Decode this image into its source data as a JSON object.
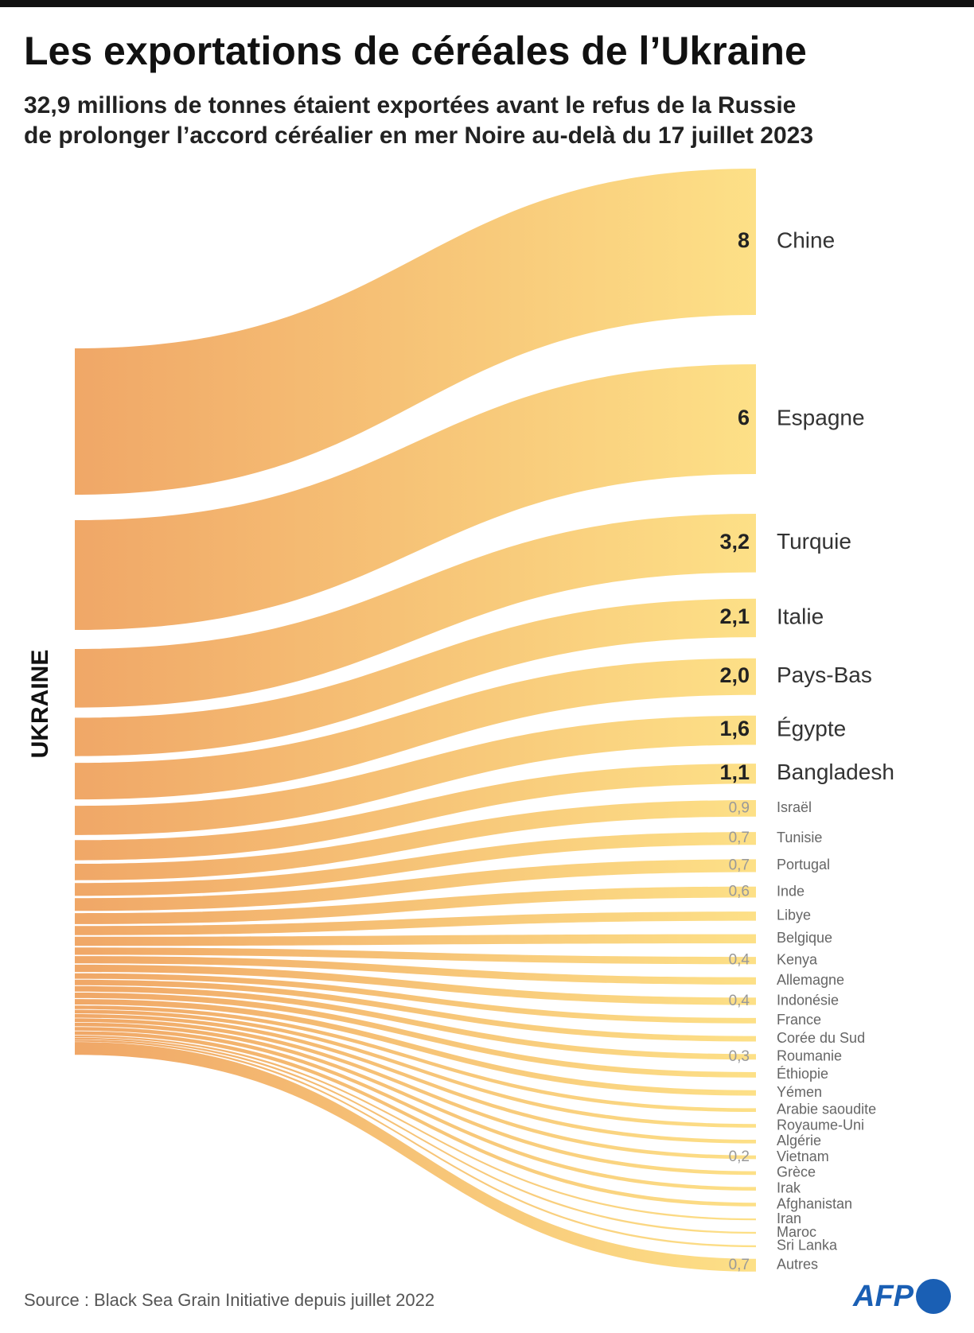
{
  "chart_data": {
    "type": "sankey",
    "title": "Les exportations de céréales de l’Ukraine",
    "subtitle": [
      "32,9 millions de tonnes étaient exportées avant le refus de la Russie",
      "de prolonger l’accord céréalier en mer Noire au-delà du 17 juillet 2023"
    ],
    "source_node": "UKRAINE",
    "categories": [
      "Chine",
      "Espagne",
      "Turquie",
      "Italie",
      "Pays-Bas",
      "Égypte",
      "Bangladesh",
      "Israël",
      "Tunisie",
      "Portugal",
      "Inde",
      "Libye",
      "Belgique",
      "Kenya",
      "Allemagne",
      "Indonésie",
      "France",
      "Corée du Sud",
      "Roumanie",
      "Éthiopie",
      "Yémen",
      "Arabie saoudite",
      "Royaume-Uni",
      "Algérie",
      "Vietnam",
      "Grèce",
      "Irak",
      "Afghanistan",
      "Iran",
      "Maroc",
      "Sri Lanka",
      "Autres"
    ],
    "values": [
      8,
      6,
      3.2,
      2.1,
      2.0,
      1.6,
      1.1,
      0.9,
      0.7,
      0.7,
      0.6,
      0.5,
      0.5,
      0.4,
      0.4,
      0.4,
      0.3,
      0.3,
      0.3,
      0.3,
      0.3,
      0.2,
      0.2,
      0.2,
      0.2,
      0.2,
      0.2,
      0.2,
      0.1,
      0.1,
      0.1,
      0.7
    ],
    "value_labels": [
      "8",
      "6",
      "3,2",
      "2,1",
      "2,0",
      "1,6",
      "1,1",
      "0,9",
      "0,7",
      "0,7",
      "0,6",
      null,
      null,
      "0,4",
      null,
      "0,4",
      null,
      null,
      "0,3",
      null,
      null,
      null,
      null,
      null,
      "0,2",
      null,
      null,
      null,
      null,
      null,
      null,
      "0,7"
    ],
    "color_start": "#f0a767",
    "color_end": "#fde087",
    "source": "Source : Black Sea Grain Initiative depuis juillet 2022",
    "credit": "AFP"
  }
}
